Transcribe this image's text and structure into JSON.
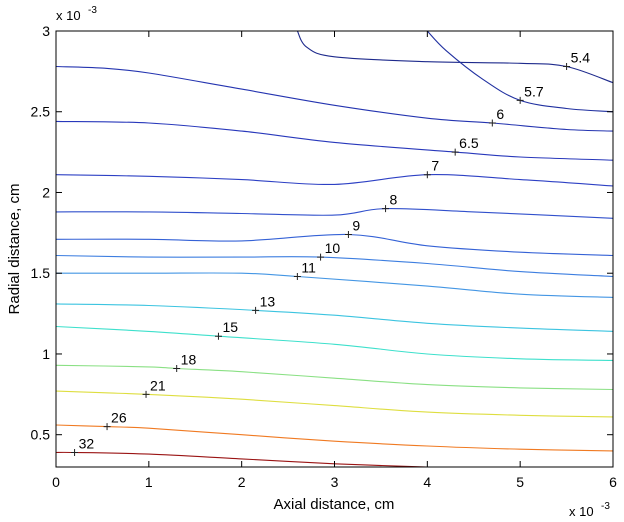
{
  "chart_data": {
    "type": "contour",
    "xlabel": "Axial distance, cm",
    "ylabel": "Radial distance, cm",
    "x_multiplier": "x 10",
    "x_exponent": "-3",
    "y_multiplier": "x 10",
    "y_exponent": "-3",
    "xlim": [
      0,
      6
    ],
    "ylim": [
      0.3,
      3
    ],
    "xticks": [
      0,
      1,
      2,
      3,
      4,
      5,
      6
    ],
    "xtick_labels": [
      "0",
      "1",
      "2",
      "3",
      "4",
      "5",
      "6"
    ],
    "yticks": [
      0.5,
      1,
      1.5,
      2,
      2.5,
      3
    ],
    "ytick_labels": [
      "0.5",
      "1",
      "1.5",
      "2",
      "2.5",
      "3"
    ],
    "grid": false,
    "contours": [
      {
        "level": "5.4",
        "color": "#1e2a8c",
        "points": [
          [
            2.6,
            3.0
          ],
          [
            2.7,
            2.9
          ],
          [
            3.0,
            2.84
          ],
          [
            4.0,
            2.81
          ],
          [
            5.0,
            2.8
          ],
          [
            5.5,
            2.78
          ],
          [
            6.0,
            2.68
          ]
        ],
        "label_at": [
          5.5,
          2.78
        ]
      },
      {
        "level": "5.7",
        "color": "#2030a0",
        "points": [
          [
            4.0,
            3.0
          ],
          [
            4.2,
            2.88
          ],
          [
            4.6,
            2.7
          ],
          [
            5.0,
            2.57
          ],
          [
            5.5,
            2.52
          ],
          [
            6.0,
            2.5
          ]
        ],
        "label_at": [
          5.0,
          2.57
        ]
      },
      {
        "level": "6",
        "color": "#2434b0",
        "points": [
          [
            0.0,
            2.78
          ],
          [
            0.5,
            2.77
          ],
          [
            1.0,
            2.74
          ],
          [
            2.0,
            2.64
          ],
          [
            3.0,
            2.54
          ],
          [
            4.0,
            2.46
          ],
          [
            4.7,
            2.43
          ],
          [
            5.5,
            2.39
          ],
          [
            6.0,
            2.38
          ]
        ],
        "label_at": [
          4.7,
          2.43
        ]
      },
      {
        "level": "6.5",
        "color": "#2838bb",
        "points": [
          [
            0.0,
            2.44
          ],
          [
            1.0,
            2.43
          ],
          [
            2.0,
            2.38
          ],
          [
            3.0,
            2.31
          ],
          [
            4.3,
            2.25
          ],
          [
            5.0,
            2.22
          ],
          [
            6.0,
            2.2
          ]
        ],
        "label_at": [
          4.3,
          2.25
        ]
      },
      {
        "level": "7",
        "color": "#2d40c4",
        "points": [
          [
            0.0,
            2.11
          ],
          [
            1.0,
            2.1
          ],
          [
            2.0,
            2.08
          ],
          [
            3.0,
            2.05
          ],
          [
            4.0,
            2.11
          ],
          [
            5.0,
            2.08
          ],
          [
            6.0,
            2.04
          ]
        ],
        "label_at": [
          4.0,
          2.11
        ]
      },
      {
        "level": "8",
        "color": "#3150cc",
        "points": [
          [
            0.0,
            1.88
          ],
          [
            1.0,
            1.88
          ],
          [
            2.0,
            1.87
          ],
          [
            3.0,
            1.86
          ],
          [
            3.55,
            1.9
          ],
          [
            4.5,
            1.88
          ],
          [
            6.0,
            1.84
          ]
        ],
        "label_at": [
          3.55,
          1.9
        ]
      },
      {
        "level": "9",
        "color": "#3562d6",
        "points": [
          [
            0.0,
            1.71
          ],
          [
            1.0,
            1.71
          ],
          [
            2.0,
            1.7
          ],
          [
            3.15,
            1.74
          ],
          [
            4.0,
            1.67
          ],
          [
            5.0,
            1.63
          ],
          [
            6.0,
            1.61
          ]
        ],
        "label_at": [
          3.15,
          1.74
        ]
      },
      {
        "level": "10",
        "color": "#3d7ee0",
        "points": [
          [
            0.0,
            1.61
          ],
          [
            1.0,
            1.6
          ],
          [
            2.0,
            1.6
          ],
          [
            2.85,
            1.6
          ],
          [
            4.0,
            1.56
          ],
          [
            5.0,
            1.51
          ],
          [
            6.0,
            1.48
          ]
        ],
        "label_at": [
          2.85,
          1.6
        ]
      },
      {
        "level": "11",
        "color": "#4496e4",
        "points": [
          [
            0.0,
            1.5
          ],
          [
            1.0,
            1.5
          ],
          [
            2.0,
            1.5
          ],
          [
            2.6,
            1.48
          ],
          [
            4.0,
            1.42
          ],
          [
            5.0,
            1.37
          ],
          [
            6.0,
            1.35
          ]
        ],
        "label_at": [
          2.6,
          1.48
        ]
      },
      {
        "level": "13",
        "color": "#3cc4e0",
        "points": [
          [
            0.0,
            1.31
          ],
          [
            1.0,
            1.3
          ],
          [
            2.15,
            1.27
          ],
          [
            3.0,
            1.24
          ],
          [
            4.0,
            1.19
          ],
          [
            5.0,
            1.16
          ],
          [
            6.0,
            1.14
          ]
        ],
        "label_at": [
          2.15,
          1.27
        ]
      },
      {
        "level": "15",
        "color": "#3ee0cc",
        "points": [
          [
            0.0,
            1.17
          ],
          [
            1.0,
            1.14
          ],
          [
            1.75,
            1.11
          ],
          [
            3.0,
            1.06
          ],
          [
            4.0,
            1.0
          ],
          [
            5.0,
            0.97
          ],
          [
            6.0,
            0.96
          ]
        ],
        "label_at": [
          1.75,
          1.11
        ]
      },
      {
        "level": "18",
        "color": "#8ae084",
        "points": [
          [
            0.0,
            0.93
          ],
          [
            1.0,
            0.92
          ],
          [
            1.3,
            0.91
          ],
          [
            2.0,
            0.89
          ],
          [
            3.0,
            0.85
          ],
          [
            4.0,
            0.81
          ],
          [
            5.0,
            0.79
          ],
          [
            6.0,
            0.78
          ]
        ],
        "label_at": [
          1.3,
          0.91
        ]
      },
      {
        "level": "21",
        "color": "#dede40",
        "points": [
          [
            0.0,
            0.77
          ],
          [
            0.5,
            0.76
          ],
          [
            0.97,
            0.75
          ],
          [
            2.0,
            0.72
          ],
          [
            3.0,
            0.68
          ],
          [
            4.0,
            0.64
          ],
          [
            5.0,
            0.62
          ],
          [
            6.0,
            0.61
          ]
        ],
        "label_at": [
          0.97,
          0.75
        ]
      },
      {
        "level": "26",
        "color": "#f07a22",
        "points": [
          [
            0.0,
            0.56
          ],
          [
            0.55,
            0.55
          ],
          [
            1.0,
            0.54
          ],
          [
            2.0,
            0.5
          ],
          [
            3.0,
            0.46
          ],
          [
            4.0,
            0.43
          ],
          [
            5.0,
            0.41
          ],
          [
            6.0,
            0.4
          ]
        ],
        "label_at": [
          0.55,
          0.55
        ]
      },
      {
        "level": "32",
        "color": "#9a1414",
        "points": [
          [
            0.0,
            0.39
          ],
          [
            0.2,
            0.39
          ],
          [
            1.0,
            0.38
          ],
          [
            2.0,
            0.35
          ],
          [
            3.0,
            0.32
          ],
          [
            4.0,
            0.3
          ]
        ],
        "label_at": [
          0.2,
          0.39
        ]
      }
    ]
  }
}
